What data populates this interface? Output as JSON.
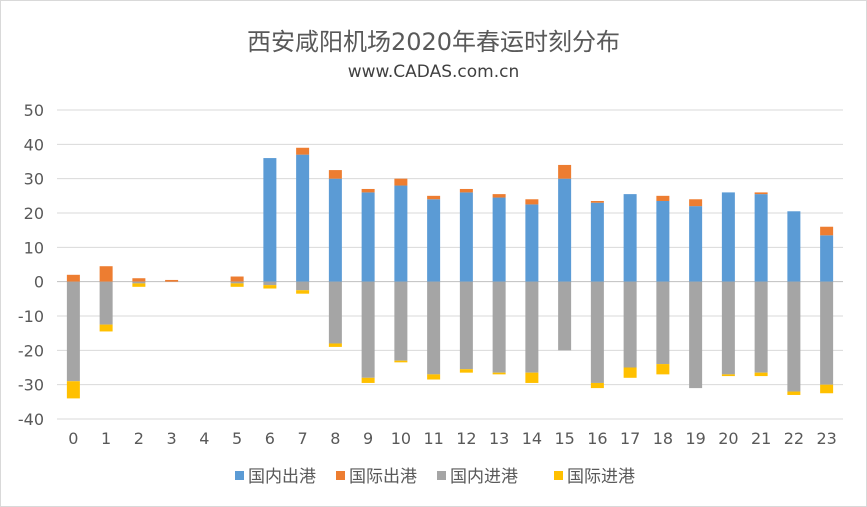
{
  "chart_data": {
    "type": "bar",
    "stacked": true,
    "title": "西安咸阳机场2020年春运时刻分布",
    "subtitle": "www.CADAS.com.cn",
    "categories": [
      "0",
      "1",
      "2",
      "3",
      "4",
      "5",
      "6",
      "7",
      "8",
      "9",
      "10",
      "11",
      "12",
      "13",
      "14",
      "15",
      "16",
      "17",
      "18",
      "19",
      "20",
      "21",
      "22",
      "23"
    ],
    "ylim": [
      -40,
      50
    ],
    "yticks": [
      50,
      40,
      30,
      20,
      10,
      0,
      -10,
      -20,
      -30,
      -40
    ],
    "grid": true,
    "legend_position": "bottom",
    "series": [
      {
        "name": "国内出港",
        "color": "#5B9BD5",
        "group": "pos",
        "values": [
          0,
          0,
          0,
          0,
          0,
          0,
          36,
          37,
          30,
          26,
          28,
          24,
          26,
          24.5,
          22.5,
          30,
          23,
          25.5,
          23.5,
          22,
          26,
          25.5,
          20.5,
          13.5
        ]
      },
      {
        "name": "国际出港",
        "color": "#ED7D31",
        "group": "pos",
        "values": [
          2,
          4.5,
          1,
          0.5,
          0,
          1.5,
          0,
          2,
          2.5,
          1,
          2,
          1,
          1,
          1,
          1.5,
          4,
          0.5,
          0,
          1.5,
          2,
          0,
          0.5,
          0,
          2.5
        ]
      },
      {
        "name": "国内进港",
        "color": "#A5A5A5",
        "group": "neg",
        "values": [
          -29,
          -12.5,
          -0.5,
          0,
          0,
          -0.5,
          -1,
          -2.5,
          -18,
          -28,
          -23,
          -27,
          -25.5,
          -26.5,
          -26.5,
          -20,
          -29.5,
          -25,
          -24,
          -31,
          -27,
          -26.5,
          -32,
          -30
        ]
      },
      {
        "name": "国际进港",
        "color": "#FFC000",
        "group": "neg",
        "values": [
          -5,
          -2,
          -1,
          0,
          0,
          -1,
          -1,
          -1,
          -1,
          -1.5,
          -0.5,
          -1.5,
          -1,
          -0.5,
          -3,
          0,
          -1.5,
          -3,
          -3,
          0,
          -0.5,
          -1,
          -1,
          -2.5
        ]
      }
    ]
  }
}
